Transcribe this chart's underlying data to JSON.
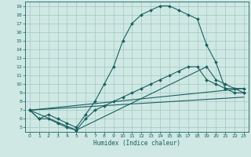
{
  "xlabel": "Humidex (Indice chaleur)",
  "bg_color": "#cfe8e4",
  "grid_color": "#a0c8c0",
  "line_color": "#1a6060",
  "xlim": [
    -0.5,
    23.5
  ],
  "ylim": [
    4.5,
    19.5
  ],
  "xticks": [
    0,
    1,
    2,
    3,
    4,
    5,
    6,
    7,
    8,
    9,
    10,
    11,
    12,
    13,
    14,
    15,
    16,
    17,
    18,
    19,
    20,
    21,
    22,
    23
  ],
  "yticks": [
    5,
    6,
    7,
    8,
    9,
    10,
    11,
    12,
    13,
    14,
    15,
    16,
    17,
    18,
    19
  ],
  "line1_x": [
    0,
    1,
    2,
    3,
    4,
    5,
    6,
    7,
    8,
    9,
    10,
    11,
    12,
    13,
    14,
    15,
    16,
    17,
    18,
    19,
    20,
    21,
    22,
    23
  ],
  "line1_y": [
    7.0,
    6.0,
    6.5,
    6.0,
    5.5,
    5.0,
    6.5,
    8.0,
    10.0,
    12.0,
    15.0,
    17.0,
    18.0,
    18.5,
    19.0,
    19.0,
    18.5,
    18.0,
    17.5,
    14.5,
    12.5,
    9.5,
    9.5,
    9.5
  ],
  "line2_x": [
    0,
    1,
    2,
    3,
    4,
    5,
    6,
    7,
    8,
    9,
    10,
    11,
    12,
    13,
    14,
    15,
    16,
    17,
    18,
    19,
    20,
    21,
    22,
    23
  ],
  "line2_y": [
    7.0,
    6.0,
    6.0,
    5.5,
    5.0,
    4.7,
    6.0,
    7.0,
    7.5,
    8.0,
    8.5,
    9.0,
    9.5,
    10.0,
    10.5,
    11.0,
    11.5,
    12.0,
    12.0,
    10.5,
    10.0,
    9.5,
    9.0,
    9.0
  ],
  "line3_x": [
    0,
    5,
    19,
    20,
    21,
    22,
    23
  ],
  "line3_y": [
    7.0,
    4.7,
    12.0,
    10.5,
    10.0,
    9.5,
    9.0
  ],
  "line4_x": [
    0,
    23
  ],
  "line4_y": [
    7.0,
    9.5
  ],
  "line5_x": [
    0,
    23
  ],
  "line5_y": [
    7.0,
    8.5
  ]
}
